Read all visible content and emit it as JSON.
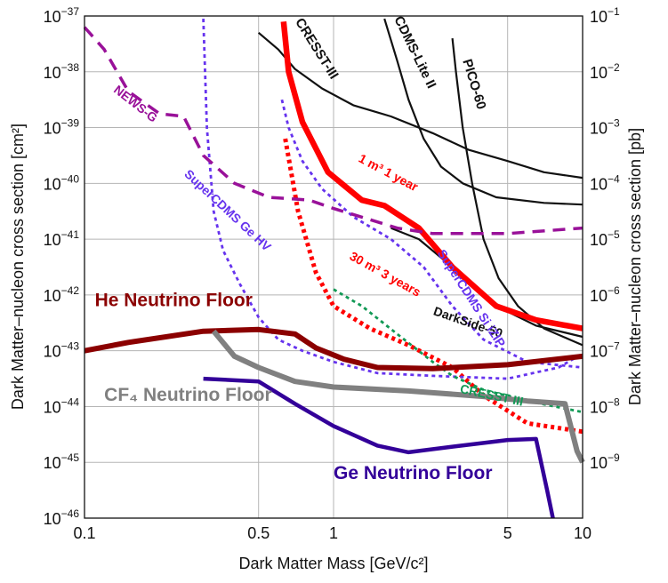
{
  "chart_data": {
    "type": "line",
    "title": "",
    "xlabel": "Dark Matter Mass [GeV/c²]",
    "ylabel": "Dark Matter–nucleon cross section [cm²]",
    "y2label": "Dark Matter–nucleon cross section [pb]",
    "xscale": "log",
    "yscale": "log",
    "xlim": [
      0.1,
      10
    ],
    "ylim": [
      1e-46,
      1e-37
    ],
    "grid": true,
    "x_ticks": [
      {
        "value": 0.1,
        "label": "0.1"
      },
      {
        "value": 0.5,
        "label": "0.5"
      },
      {
        "value": 1,
        "label": "1"
      },
      {
        "value": 5,
        "label": "5"
      },
      {
        "value": 10,
        "label": "10"
      }
    ],
    "y_ticks_left": [
      {
        "exp": -37,
        "base": "10",
        "sup": "−37"
      },
      {
        "exp": -38,
        "base": "10",
        "sup": "−38"
      },
      {
        "exp": -39,
        "base": "10",
        "sup": "−39"
      },
      {
        "exp": -40,
        "base": "10",
        "sup": "−40"
      },
      {
        "exp": -41,
        "base": "10",
        "sup": "−41"
      },
      {
        "exp": -42,
        "base": "10",
        "sup": "−42"
      },
      {
        "exp": -43,
        "base": "10",
        "sup": "−43"
      },
      {
        "exp": -44,
        "base": "10",
        "sup": "−44"
      },
      {
        "exp": -45,
        "base": "10",
        "sup": "−45"
      },
      {
        "exp": -46,
        "base": "10",
        "sup": "−46"
      }
    ],
    "y_ticks_right": [
      {
        "exp": -37,
        "base": "10",
        "sup": "−1"
      },
      {
        "exp": -38,
        "base": "10",
        "sup": "−2"
      },
      {
        "exp": -39,
        "base": "10",
        "sup": "−3"
      },
      {
        "exp": -40,
        "base": "10",
        "sup": "−4"
      },
      {
        "exp": -41,
        "base": "10",
        "sup": "−5"
      },
      {
        "exp": -42,
        "base": "10",
        "sup": "−6"
      },
      {
        "exp": -43,
        "base": "10",
        "sup": "−7"
      },
      {
        "exp": -44,
        "base": "10",
        "sup": "−8"
      },
      {
        "exp": -45,
        "base": "10",
        "sup": "−9"
      }
    ],
    "series": [
      {
        "name": "CRESST-III",
        "color": "#111111",
        "style": "solid",
        "width": 2.2,
        "points": [
          [
            0.5,
            -37.3
          ],
          [
            0.6,
            -37.6
          ],
          [
            0.7,
            -37.95
          ],
          [
            0.9,
            -38.3
          ],
          [
            1.2,
            -38.6
          ],
          [
            1.7,
            -38.8
          ],
          [
            2.5,
            -39.1
          ],
          [
            3.5,
            -39.4
          ],
          [
            5,
            -39.6
          ],
          [
            7,
            -39.8
          ],
          [
            10,
            -39.9
          ]
        ]
      },
      {
        "name": "CDMS-Lite II",
        "color": "#111111",
        "style": "solid",
        "width": 2.2,
        "points": [
          [
            1.6,
            -37.05
          ],
          [
            1.8,
            -37.8
          ],
          [
            2.0,
            -38.5
          ],
          [
            2.3,
            -39.2
          ],
          [
            2.7,
            -39.7
          ],
          [
            3.3,
            -40.0
          ],
          [
            4.5,
            -40.25
          ],
          [
            7,
            -40.35
          ],
          [
            10,
            -40.38
          ]
        ]
      },
      {
        "name": "PICO-60",
        "color": "#111111",
        "style": "solid",
        "width": 2.2,
        "points": [
          [
            3.0,
            -37.4
          ],
          [
            3.1,
            -38.0
          ],
          [
            3.3,
            -39.0
          ],
          [
            3.6,
            -40.0
          ],
          [
            4.0,
            -41.0
          ],
          [
            4.6,
            -41.7
          ],
          [
            5.5,
            -42.2
          ],
          [
            7,
            -42.6
          ],
          [
            10,
            -42.9
          ]
        ]
      },
      {
        "name": "DarkSide-50",
        "color": "#111111",
        "style": "solid",
        "width": 2.2,
        "points": [
          [
            1.7,
            -40.8
          ],
          [
            2.2,
            -41.0
          ],
          [
            3.0,
            -41.5
          ],
          [
            4.0,
            -42.0
          ],
          [
            5.0,
            -42.3
          ],
          [
            6.5,
            -42.55
          ],
          [
            10,
            -42.75
          ]
        ]
      },
      {
        "name": "1 m³ 1 year",
        "color": "#ff0000",
        "style": "solid",
        "width": 6.5,
        "points": [
          [
            0.63,
            -37.1
          ],
          [
            0.66,
            -38.0
          ],
          [
            0.75,
            -38.9
          ],
          [
            0.95,
            -39.8
          ],
          [
            1.3,
            -40.3
          ],
          [
            1.6,
            -40.4
          ],
          [
            2.2,
            -40.8
          ],
          [
            3.0,
            -41.5
          ],
          [
            4.5,
            -42.2
          ],
          [
            6.5,
            -42.45
          ],
          [
            10,
            -42.6
          ]
        ]
      },
      {
        "name": "30 m³ 3 years",
        "color": "#ff0000",
        "style": "dotted",
        "width": 5,
        "points": [
          [
            0.64,
            -39.2
          ],
          [
            0.72,
            -40.5
          ],
          [
            0.85,
            -41.6
          ],
          [
            1.0,
            -42.2
          ],
          [
            1.4,
            -42.6
          ],
          [
            2.0,
            -42.9
          ],
          [
            3.0,
            -43.3
          ],
          [
            4.0,
            -43.8
          ],
          [
            6,
            -44.3
          ],
          [
            10,
            -44.45
          ]
        ]
      },
      {
        "name": "SuperCDMS Ge HV",
        "color": "#6633ee",
        "style": "dotted",
        "width": 2.8,
        "points": [
          [
            0.3,
            -37.05
          ],
          [
            0.31,
            -39.0
          ],
          [
            0.33,
            -40.5
          ],
          [
            0.36,
            -41.2
          ],
          [
            0.42,
            -41.8
          ],
          [
            0.5,
            -42.4
          ],
          [
            0.6,
            -42.8
          ],
          [
            0.75,
            -43.0
          ],
          [
            1.0,
            -43.2
          ],
          [
            1.5,
            -43.4
          ],
          [
            2.5,
            -43.45
          ],
          [
            5,
            -43.5
          ],
          [
            8,
            -43.3
          ],
          [
            10,
            -43.05
          ]
        ]
      },
      {
        "name": "SuperCDMS Si iZIP",
        "color": "#6633ee",
        "style": "dotted",
        "width": 2.8,
        "points": [
          [
            0.62,
            -38.5
          ],
          [
            0.66,
            -39.0
          ],
          [
            0.75,
            -39.6
          ],
          [
            0.9,
            -40.1
          ],
          [
            1.2,
            -40.6
          ],
          [
            1.7,
            -41.0
          ],
          [
            2.3,
            -41.5
          ],
          [
            3.0,
            -42.2
          ],
          [
            4,
            -42.8
          ],
          [
            6,
            -43.2
          ],
          [
            10,
            -43.3
          ]
        ]
      },
      {
        "name": "NEWS-G",
        "color": "#991199",
        "style": "dashed",
        "width": 3.5,
        "points": [
          [
            0.1,
            -37.2
          ],
          [
            0.12,
            -37.6
          ],
          [
            0.15,
            -38.35
          ],
          [
            0.2,
            -38.75
          ],
          [
            0.25,
            -38.8
          ],
          [
            0.3,
            -39.5
          ],
          [
            0.4,
            -40.0
          ],
          [
            0.55,
            -40.25
          ],
          [
            0.8,
            -40.3
          ],
          [
            1.0,
            -40.45
          ],
          [
            1.4,
            -40.65
          ],
          [
            1.8,
            -40.8
          ],
          [
            2.5,
            -40.9
          ],
          [
            5,
            -40.9
          ],
          [
            10,
            -40.8
          ]
        ]
      },
      {
        "name": "CRESST III",
        "color": "#119955",
        "style": "dotted",
        "width": 2.8,
        "points": [
          [
            1.0,
            -41.9
          ],
          [
            1.3,
            -42.2
          ],
          [
            1.8,
            -42.7
          ],
          [
            2.5,
            -43.2
          ],
          [
            3.0,
            -43.45
          ],
          [
            4,
            -43.7
          ],
          [
            6,
            -43.9
          ],
          [
            10,
            -44.1
          ]
        ]
      },
      {
        "name": "He Neutrino Floor",
        "color": "#8b0000",
        "style": "solid",
        "width": 6,
        "points": [
          [
            0.1,
            -43.0
          ],
          [
            0.15,
            -42.85
          ],
          [
            0.3,
            -42.65
          ],
          [
            0.5,
            -42.62
          ],
          [
            0.7,
            -42.7
          ],
          [
            0.85,
            -42.95
          ],
          [
            1.1,
            -43.15
          ],
          [
            1.5,
            -43.3
          ],
          [
            2.5,
            -43.32
          ],
          [
            5,
            -43.25
          ],
          [
            10,
            -43.1
          ]
        ]
      },
      {
        "name": "CF₄ Neutrino Floor",
        "color": "#808080",
        "style": "solid",
        "width": 6,
        "points": [
          [
            0.33,
            -42.65
          ],
          [
            0.4,
            -43.1
          ],
          [
            0.5,
            -43.3
          ],
          [
            0.7,
            -43.55
          ],
          [
            1.0,
            -43.65
          ],
          [
            2.0,
            -43.72
          ],
          [
            4,
            -43.82
          ],
          [
            6,
            -43.9
          ],
          [
            8.5,
            -43.95
          ],
          [
            9.5,
            -44.8
          ],
          [
            10,
            -45.0
          ]
        ]
      },
      {
        "name": "Ge Neutrino Floor",
        "color": "#330099",
        "style": "solid",
        "width": 4.5,
        "points": [
          [
            0.3,
            -43.5
          ],
          [
            0.5,
            -43.55
          ],
          [
            0.7,
            -43.95
          ],
          [
            1.0,
            -44.35
          ],
          [
            1.5,
            -44.7
          ],
          [
            2.0,
            -44.82
          ],
          [
            3.0,
            -44.72
          ],
          [
            5,
            -44.6
          ],
          [
            6.5,
            -44.58
          ],
          [
            7.2,
            -45.5
          ],
          [
            7.6,
            -46.0
          ]
        ]
      }
    ],
    "annotations": [
      {
        "id": "cresst-iii-black",
        "text": "CRESST-III",
        "color": "#111111",
        "x": 0.7,
        "y": -37.1,
        "rotate": 58,
        "size": 15
      },
      {
        "id": "cdms-lite",
        "text": "CDMS-Lite II",
        "color": "#111111",
        "x": 1.75,
        "y": -37.05,
        "rotate": 64,
        "size": 15
      },
      {
        "id": "pico-60",
        "text": "PICO-60",
        "color": "#111111",
        "x": 3.3,
        "y": -37.8,
        "rotate": 73,
        "size": 15
      },
      {
        "id": "darkside-50",
        "text": "DarkSide-50",
        "color": "#111111",
        "x": 2.5,
        "y": -42.35,
        "rotate": 19,
        "size": 14
      },
      {
        "id": "one-m3",
        "text": "1 m³ 1 year",
        "color": "#ff0000",
        "x": 1.25,
        "y": -39.6,
        "rotate": 28,
        "size": 14
      },
      {
        "id": "thirty-m3",
        "text": "30 m³ 3 years",
        "color": "#ff0000",
        "x": 1.15,
        "y": -41.35,
        "rotate": 29,
        "size": 14
      },
      {
        "id": "supercdms-ge",
        "text": "SuperCDMS Ge HV",
        "color": "#6633ee",
        "x": 0.25,
        "y": -39.85,
        "rotate": 43,
        "size": 14
      },
      {
        "id": "supercdms-si",
        "text": "SuperCDMS Si iZIP",
        "color": "#6633ee",
        "x": 2.6,
        "y": -41.25,
        "rotate": 57,
        "size": 14
      },
      {
        "id": "news-g",
        "text": "NEWS-G",
        "color": "#991199",
        "x": 0.13,
        "y": -38.35,
        "rotate": 38,
        "size": 14
      },
      {
        "id": "cresst-iii-green",
        "text": "CRESST III",
        "color": "#119955",
        "x": 3.2,
        "y": -43.75,
        "rotate": 12,
        "size": 14
      },
      {
        "id": "he-floor",
        "text": "He Neutrino Floor",
        "color": "#8b0000",
        "x": 0.11,
        "y": -42.2,
        "rotate": 0,
        "size": 21
      },
      {
        "id": "cf4-floor",
        "text": "CF₄ Neutrino Floor",
        "color": "#808080",
        "x": 0.12,
        "y": -43.9,
        "rotate": 0,
        "size": 21
      },
      {
        "id": "ge-floor",
        "text": "Ge Neutrino Floor",
        "color": "#330099",
        "x": 1.0,
        "y": -45.3,
        "rotate": 0,
        "size": 21
      }
    ]
  }
}
